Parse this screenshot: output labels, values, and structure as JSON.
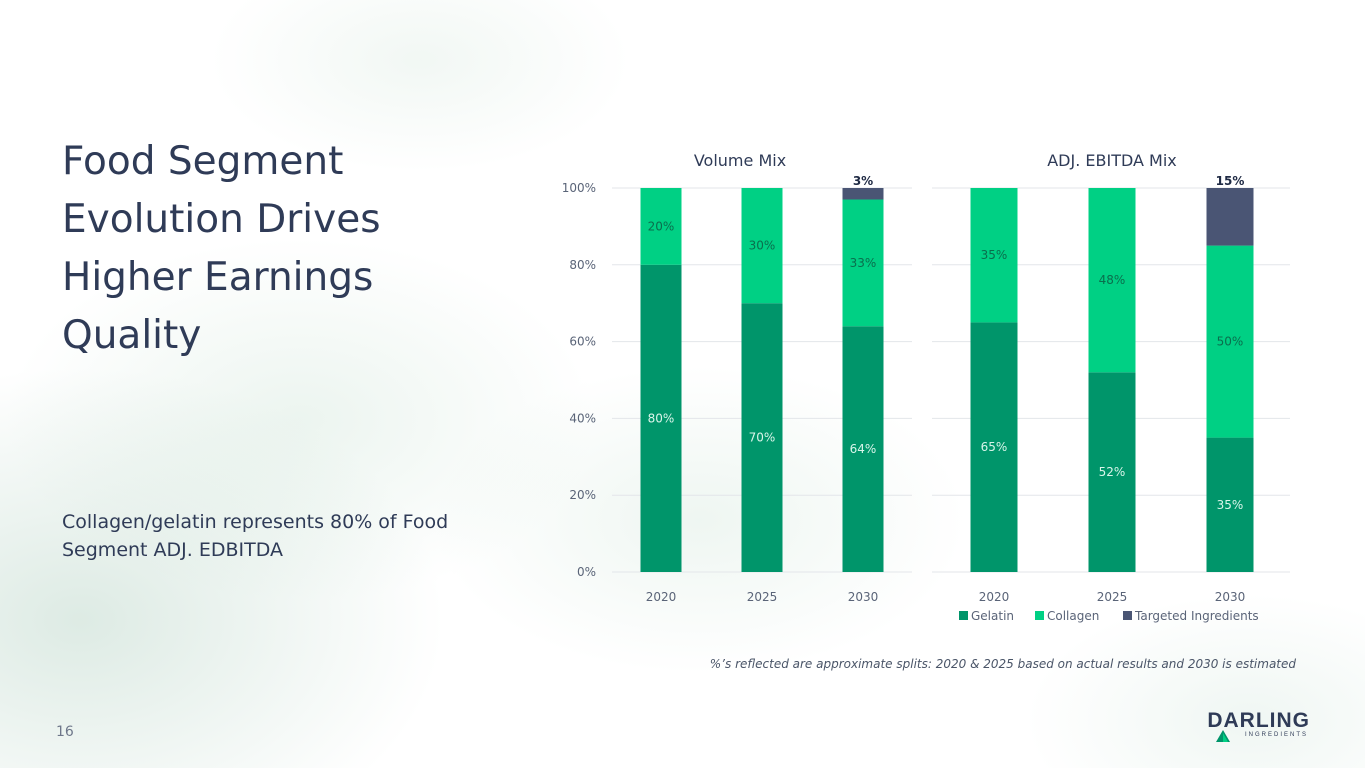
{
  "slide": {
    "title": "Food Segment Evolution Drives Higher Earnings Quality",
    "subtitle": "Collagen/gelatin represents 80% of Food Segment ADJ. EDBITDA",
    "footnote": "%’s reflected are approximate splits: 2020 & 2025 based on actual results and 2030 is estimated",
    "page_number": "16"
  },
  "logo": {
    "word": "DARLING",
    "sub": "INGREDIENTS"
  },
  "colors": {
    "gelatin": "#00956a",
    "collagen": "#00d084",
    "targeted": "#4a5574",
    "axis_text": "#5a6478",
    "grid": "#e3e6ea",
    "title_text": "#2f3b57"
  },
  "chart_data": [
    {
      "type": "bar",
      "stacked": true,
      "title": "Volume Mix",
      "categories": [
        "2020",
        "2025",
        "2030"
      ],
      "series": [
        {
          "name": "Gelatin",
          "values": [
            80,
            70,
            64
          ],
          "labels": [
            "80%",
            "70%",
            "64%"
          ]
        },
        {
          "name": "Collagen",
          "values": [
            20,
            30,
            33
          ],
          "labels": [
            "20%",
            "30%",
            "33%"
          ]
        },
        {
          "name": "Targeted Ingredients",
          "values": [
            0,
            0,
            3
          ],
          "labels": [
            "",
            "",
            "3%"
          ]
        }
      ],
      "ylim": [
        0,
        100
      ],
      "yticks": [
        "0%",
        "20%",
        "40%",
        "60%",
        "80%",
        "100%"
      ],
      "grid": true
    },
    {
      "type": "bar",
      "stacked": true,
      "title": "ADJ. EBITDA Mix",
      "categories": [
        "2020",
        "2025",
        "2030"
      ],
      "series": [
        {
          "name": "Gelatin",
          "values": [
            65,
            52,
            35
          ],
          "labels": [
            "65%",
            "52%",
            "35%"
          ]
        },
        {
          "name": "Collagen",
          "values": [
            35,
            48,
            50
          ],
          "labels": [
            "35%",
            "48%",
            "50%"
          ]
        },
        {
          "name": "Targeted Ingredients",
          "values": [
            0,
            0,
            15
          ],
          "labels": [
            "",
            "",
            "15%"
          ]
        }
      ],
      "ylim": [
        0,
        100
      ],
      "grid": true,
      "legend": {
        "position": "bottom-right",
        "entries": [
          "Gelatin",
          "Collagen",
          "Targeted Ingredients"
        ]
      }
    }
  ]
}
